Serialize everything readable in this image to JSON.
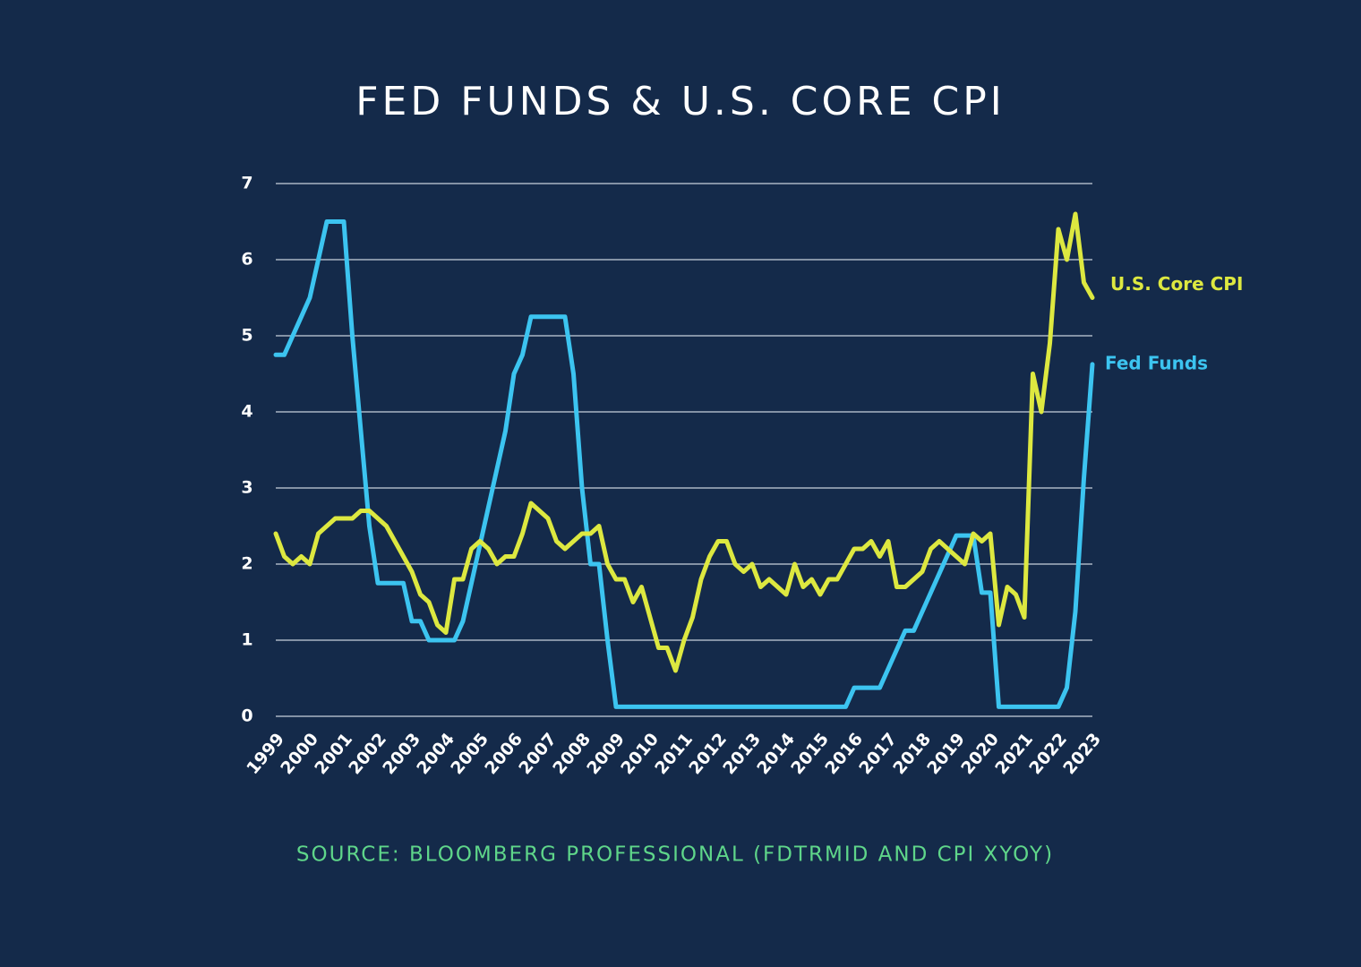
{
  "chart_data": {
    "type": "line",
    "title": "FED FUNDS & U.S. CORE CPI",
    "source": "SOURCE: BLOOMBERG PROFESSIONAL (FDTRMID AND CPI XYOY)",
    "x": [
      1999,
      1999.25,
      1999.5,
      1999.75,
      2000,
      2000.25,
      2000.5,
      2000.75,
      2001,
      2001.25,
      2001.5,
      2001.75,
      2002,
      2002.25,
      2002.5,
      2002.75,
      2003,
      2003.25,
      2003.5,
      2003.75,
      2004,
      2004.25,
      2004.5,
      2004.75,
      2005,
      2005.25,
      2005.5,
      2005.75,
      2006,
      2006.25,
      2006.5,
      2006.75,
      2007,
      2007.25,
      2007.5,
      2007.75,
      2008,
      2008.25,
      2008.5,
      2008.75,
      2009,
      2009.25,
      2009.5,
      2009.75,
      2010,
      2010.25,
      2010.5,
      2010.75,
      2011,
      2011.25,
      2011.5,
      2011.75,
      2012,
      2012.25,
      2012.5,
      2012.75,
      2013,
      2013.25,
      2013.5,
      2013.75,
      2014,
      2014.25,
      2014.5,
      2014.75,
      2015,
      2015.25,
      2015.5,
      2015.75,
      2016,
      2016.25,
      2016.5,
      2016.75,
      2017,
      2017.25,
      2017.5,
      2017.75,
      2018,
      2018.25,
      2018.5,
      2018.75,
      2019,
      2019.25,
      2019.5,
      2019.75,
      2020,
      2020.25,
      2020.5,
      2020.75,
      2021,
      2021.25,
      2021.5,
      2021.75,
      2022,
      2022.25,
      2022.5,
      2022.75,
      2023
    ],
    "series": [
      {
        "name": "U.S. Core CPI",
        "color": "#dde840",
        "values": [
          2.4,
          2.1,
          2.0,
          2.1,
          2.0,
          2.4,
          2.5,
          2.6,
          2.6,
          2.6,
          2.7,
          2.7,
          2.6,
          2.5,
          2.3,
          2.1,
          1.9,
          1.6,
          1.5,
          1.2,
          1.1,
          1.8,
          1.8,
          2.2,
          2.3,
          2.2,
          2.0,
          2.1,
          2.1,
          2.4,
          2.8,
          2.7,
          2.6,
          2.3,
          2.2,
          2.3,
          2.4,
          2.4,
          2.5,
          2.0,
          1.8,
          1.8,
          1.5,
          1.7,
          1.3,
          0.9,
          0.9,
          0.6,
          1.0,
          1.3,
          1.8,
          2.1,
          2.3,
          2.3,
          2.0,
          1.9,
          2.0,
          1.7,
          1.8,
          1.7,
          1.6,
          2.0,
          1.7,
          1.8,
          1.6,
          1.8,
          1.8,
          2.0,
          2.2,
          2.2,
          2.3,
          2.1,
          2.3,
          1.7,
          1.7,
          1.8,
          1.9,
          2.2,
          2.3,
          2.2,
          2.1,
          2.0,
          2.4,
          2.3,
          2.4,
          1.2,
          1.7,
          1.6,
          1.3,
          4.5,
          4.0,
          4.9,
          6.4,
          6.0,
          6.6,
          5.7,
          5.5
        ]
      },
      {
        "name": "Fed Funds",
        "color": "#3cc4f0",
        "values": [
          4.75,
          4.75,
          5.0,
          5.25,
          5.5,
          6.0,
          6.5,
          6.5,
          6.5,
          5.0,
          3.75,
          2.5,
          1.75,
          1.75,
          1.75,
          1.75,
          1.25,
          1.25,
          1.0,
          1.0,
          1.0,
          1.0,
          1.25,
          1.75,
          2.25,
          2.75,
          3.25,
          3.75,
          4.5,
          4.75,
          5.25,
          5.25,
          5.25,
          5.25,
          5.25,
          4.5,
          3.0,
          2.0,
          2.0,
          1.0,
          0.125,
          0.125,
          0.125,
          0.125,
          0.125,
          0.125,
          0.125,
          0.125,
          0.125,
          0.125,
          0.125,
          0.125,
          0.125,
          0.125,
          0.125,
          0.125,
          0.125,
          0.125,
          0.125,
          0.125,
          0.125,
          0.125,
          0.125,
          0.125,
          0.125,
          0.125,
          0.125,
          0.125,
          0.375,
          0.375,
          0.375,
          0.375,
          0.625,
          0.875,
          1.125,
          1.125,
          1.375,
          1.625,
          1.875,
          2.125,
          2.375,
          2.375,
          2.375,
          1.625,
          1.625,
          0.125,
          0.125,
          0.125,
          0.125,
          0.125,
          0.125,
          0.125,
          0.125,
          0.375,
          1.375,
          3.125,
          4.625
        ]
      }
    ],
    "xlim": [
      1999,
      2023
    ],
    "xticks": [
      1999,
      2000,
      2001,
      2002,
      2003,
      2004,
      2005,
      2006,
      2007,
      2008,
      2009,
      2010,
      2011,
      2012,
      2013,
      2014,
      2015,
      2016,
      2017,
      2018,
      2019,
      2020,
      2021,
      2022,
      2023
    ],
    "ylim": [
      0,
      7
    ],
    "yticks": [
      0,
      1,
      2,
      3,
      4,
      5,
      6,
      7
    ],
    "grid": true
  }
}
